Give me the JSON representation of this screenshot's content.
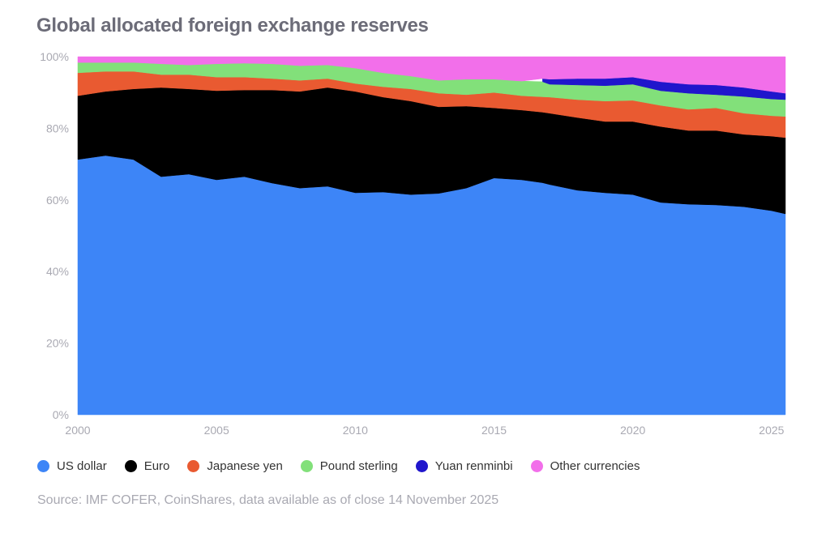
{
  "chart_data": {
    "type": "area",
    "stacked": true,
    "title": "Global allocated foreign exchange reserves",
    "source": "Source: IMF COFER, CoinShares, data available as of close 14 November 2025",
    "xlabel": "",
    "ylabel": "",
    "xlim": [
      2000,
      2025.5
    ],
    "ylim": [
      0,
      100
    ],
    "x_ticks": [
      "2000",
      "2005",
      "2010",
      "2015",
      "2020",
      "2025"
    ],
    "y_ticks": [
      "0%",
      "20%",
      "40%",
      "60%",
      "80%",
      "100%"
    ],
    "grid": false,
    "legend_position": "bottom",
    "x": [
      2000,
      2001,
      2002,
      2003,
      2004,
      2005,
      2006,
      2007,
      2008,
      2009,
      2010,
      2011,
      2012,
      2013,
      2014,
      2015,
      2016,
      2016.75,
      2017,
      2018,
      2019,
      2020,
      2021,
      2022,
      2023,
      2024,
      2025,
      2025.5
    ],
    "series": [
      {
        "name": "US dollar",
        "color": "#3d85f7",
        "values": [
          71.3,
          72.4,
          71.3,
          66.5,
          67.2,
          65.6,
          66.5,
          64.7,
          63.3,
          63.8,
          62.0,
          62.2,
          61.5,
          61.8,
          63.3,
          66.1,
          65.6,
          64.8,
          64.3,
          62.7,
          62.0,
          61.5,
          59.3,
          58.8,
          58.6,
          58.1,
          57.0,
          56.1
        ]
      },
      {
        "name": "Euro",
        "color": "#000000",
        "values": [
          17.8,
          17.9,
          19.7,
          24.9,
          23.8,
          24.9,
          24.2,
          26.0,
          27.0,
          27.6,
          28.3,
          26.5,
          26.1,
          24.2,
          22.9,
          19.6,
          19.5,
          19.7,
          19.9,
          20.3,
          19.9,
          20.4,
          21.2,
          20.6,
          20.8,
          20.2,
          20.8,
          21.3
        ]
      },
      {
        "name": "Japanese yen",
        "color": "#e95a31",
        "values": [
          6.4,
          5.6,
          4.9,
          3.6,
          4.0,
          3.8,
          3.6,
          3.2,
          3.1,
          2.5,
          2.2,
          2.9,
          3.4,
          3.8,
          3.2,
          4.3,
          4.0,
          4.3,
          4.5,
          5.0,
          5.7,
          5.9,
          5.9,
          5.9,
          6.3,
          5.9,
          5.7,
          5.9
        ]
      },
      {
        "name": "Pound sterling",
        "color": "#82e07a",
        "values": [
          2.9,
          2.5,
          2.5,
          3.0,
          2.7,
          3.7,
          3.9,
          4.1,
          4.1,
          3.8,
          4.3,
          3.9,
          3.6,
          3.6,
          4.3,
          3.7,
          4.1,
          4.2,
          3.6,
          4.1,
          4.3,
          4.5,
          4.1,
          4.5,
          3.7,
          4.7,
          4.7,
          4.7
        ]
      },
      {
        "name": "Yuan renminbi",
        "color": "#2016cc",
        "values": [
          null,
          null,
          null,
          null,
          null,
          null,
          null,
          null,
          null,
          null,
          null,
          null,
          null,
          null,
          null,
          null,
          null,
          0.9,
          1.4,
          1.8,
          2.0,
          2.0,
          2.5,
          2.5,
          2.7,
          2.5,
          2.1,
          1.8
        ]
      },
      {
        "name": "Other currencies",
        "color": "#f26fea",
        "values": [
          1.6,
          1.6,
          1.6,
          2.0,
          2.3,
          2.0,
          1.8,
          2.0,
          2.5,
          2.3,
          3.2,
          4.5,
          5.4,
          6.6,
          6.3,
          6.3,
          6.8,
          6.1,
          6.3,
          6.1,
          6.1,
          5.7,
          7.0,
          7.7,
          7.9,
          8.6,
          9.7,
          10.2
        ]
      }
    ]
  }
}
